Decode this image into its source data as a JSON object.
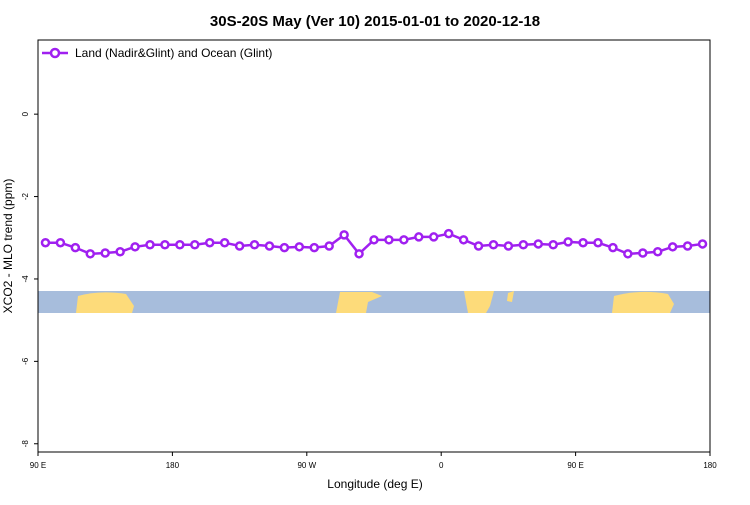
{
  "chart_data": {
    "type": "line",
    "title": "30S-20S May (Ver 10)   2015-01-01 to 2020-12-18",
    "x_label": "Longitude (deg E)",
    "y_label": "XCO2 - MLO trend (ppm)",
    "x": [
      95,
      105,
      115,
      125,
      135,
      145,
      155,
      165,
      175,
      185,
      195,
      205,
      215,
      225,
      235,
      245,
      255,
      265,
      275,
      285,
      295,
      305,
      315,
      325,
      335,
      345,
      355,
      365,
      375,
      385,
      395,
      405,
      415,
      425,
      435,
      445,
      455,
      465,
      475,
      485,
      495,
      505,
      515,
      525,
      535
    ],
    "series": [
      {
        "name": "Land (Nadir&Glint) and Ocean (Glint)",
        "color": "#a020f0",
        "values": [
          -3.12,
          -3.12,
          -3.24,
          -3.39,
          -3.37,
          -3.34,
          -3.22,
          -3.17,
          -3.17,
          -3.17,
          -3.17,
          -3.12,
          -3.12,
          -3.2,
          -3.17,
          -3.2,
          -3.24,
          -3.22,
          -3.24,
          -3.2,
          -2.93,
          -3.39,
          -3.05,
          -3.05,
          -3.05,
          -2.98,
          -2.98,
          -2.9,
          -3.05,
          -3.2,
          -3.17,
          -3.2,
          -3.17,
          -3.15,
          -3.17,
          -3.1,
          -3.12,
          -3.12,
          -3.24,
          -3.39,
          -3.37,
          -3.34,
          -3.22,
          -3.2,
          -3.15
        ]
      }
    ],
    "xlim": [
      90,
      540
    ],
    "xticks": [
      {
        "value": 90,
        "label": "90 E"
      },
      180,
      {
        "value": 270,
        "label": "90 W"
      },
      {
        "value": 360,
        "label": "0"
      },
      {
        "value": 450,
        "label": "90 E"
      },
      {
        "value": 540,
        "label": "180"
      }
    ],
    "ylim": [
      -8.2,
      1.8
    ],
    "yticks": [
      0,
      -2,
      -4,
      -6,
      -8
    ],
    "legend": "top-left"
  }
}
